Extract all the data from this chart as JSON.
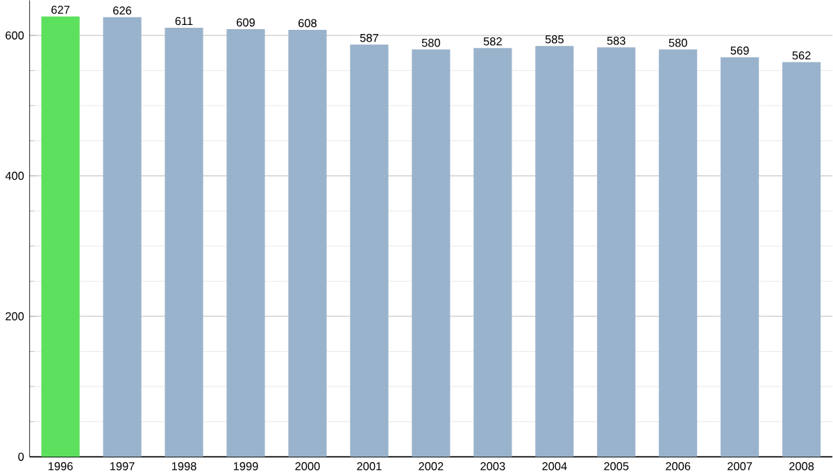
{
  "chart_data": {
    "type": "bar",
    "categories": [
      "1996",
      "1997",
      "1998",
      "1999",
      "2000",
      "2001",
      "2002",
      "2003",
      "2004",
      "2005",
      "2006",
      "2007",
      "2008"
    ],
    "values": [
      627,
      626,
      611,
      609,
      608,
      587,
      580,
      582,
      585,
      583,
      580,
      569,
      562
    ],
    "colors": [
      "#5de05d",
      "#9ab3cc",
      "#9ab3cc",
      "#9ab3cc",
      "#9ab3cc",
      "#9ab3cc",
      "#9ab3cc",
      "#9ab3cc",
      "#9ab3cc",
      "#9ab3cc",
      "#9ab3cc",
      "#9ab3cc",
      "#9ab3cc"
    ],
    "ylim": [
      0,
      650
    ],
    "yticks": [
      0,
      200,
      400,
      600
    ],
    "grid": "y",
    "data_labels": true
  }
}
